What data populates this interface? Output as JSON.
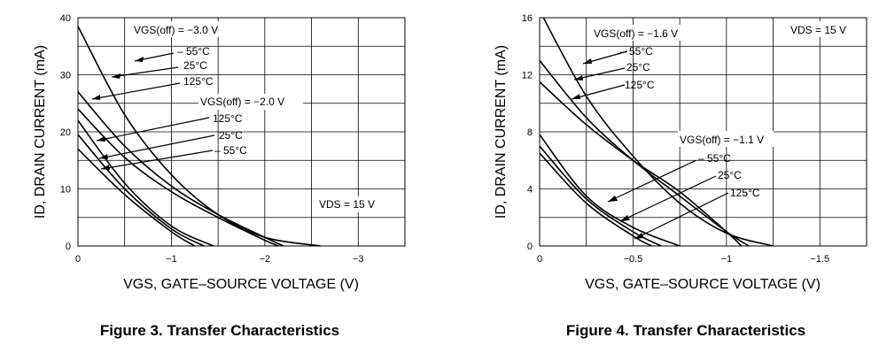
{
  "chart_data": [
    {
      "type": "line",
      "title": "Figure 3. Transfer Characteristics",
      "xlabel": "VGS, GATE–SOURCE VOLTAGE (V)",
      "ylabel": "ID, DRAIN CURRENT (mA)",
      "xlim": [
        0,
        -3.5
      ],
      "ylim": [
        0,
        40
      ],
      "x_ticks": [
        0,
        -1,
        -2,
        -3
      ],
      "x_tick_labels": [
        "0",
        "−1",
        "−2",
        "−3"
      ],
      "y_ticks": [
        0,
        10,
        20,
        30,
        40
      ],
      "y_tick_labels": [
        "0",
        "10",
        "20",
        "30",
        "40"
      ],
      "grid": true,
      "annotations": [
        "VGS(off) = −3.0 V",
        "– 55°C",
        "25°C",
        "125°C",
        "VGS(off) = −2.0 V",
        "125°C",
        "25°C",
        "– 55°C",
        "VDS = 15 V"
      ],
      "series": [
        {
          "values_x": [
            0,
            -0.5,
            -1.0,
            -1.5,
            -2.0,
            -2.6
          ],
          "values_y": [
            38.5,
            23,
            12.5,
            5.5,
            1.5,
            0
          ]
        },
        {
          "values_x": [
            0,
            -0.5,
            -1.0,
            -1.5,
            -2.0,
            -2.2
          ],
          "values_y": [
            27,
            17.5,
            10.5,
            5.5,
            1.5,
            0
          ]
        },
        {
          "values_x": [
            0,
            -0.5,
            -1.0,
            -1.5,
            -2.0,
            -2.15
          ],
          "values_y": [
            24,
            15.5,
            9.5,
            5,
            1,
            0
          ]
        },
        {
          "values_x": [
            0,
            -0.5,
            -1.0,
            -1.45
          ],
          "values_y": [
            22,
            11,
            3.5,
            0
          ]
        },
        {
          "values_x": [
            0,
            -0.5,
            -1.0,
            -1.35
          ],
          "values_y": [
            19.5,
            10,
            3,
            0
          ]
        },
        {
          "values_x": [
            0,
            -0.5,
            -1.0,
            -1.25
          ],
          "values_y": [
            17,
            9,
            2.5,
            0
          ]
        }
      ]
    },
    {
      "type": "line",
      "title": "Figure 4. Transfer Characteristics",
      "xlabel": "VGS, GATE–SOURCE VOLTAGE (V)",
      "ylabel": "ID, DRAIN CURRENT (mA)",
      "xlim": [
        0,
        -1.75
      ],
      "ylim": [
        0,
        16
      ],
      "x_ticks": [
        0,
        -0.5,
        -1,
        -1.5
      ],
      "x_tick_labels": [
        "0",
        "−0.5",
        "−1",
        "−1.5"
      ],
      "y_ticks": [
        0,
        4,
        8,
        12,
        16
      ],
      "y_tick_labels": [
        "0",
        "4",
        "8",
        "12",
        "16"
      ],
      "grid": true,
      "annotations": [
        "VGS(off) = −1.6 V",
        "– 55°C",
        "25°C",
        "125°C",
        "VDS = 15 V",
        "VGS(off) = −1.1 V",
        "– 55°C",
        "25°C",
        "125°C"
      ],
      "series": [
        {
          "values_x": [
            0,
            -0.25,
            -0.5,
            -0.75,
            -1.0,
            -1.25
          ],
          "values_y": [
            16.5,
            10.5,
            6.3,
            3,
            0.9,
            0
          ]
        },
        {
          "values_x": [
            0,
            -0.25,
            -0.5,
            -0.75,
            -1.0,
            -1.12
          ],
          "values_y": [
            13,
            9,
            6,
            3.5,
            1,
            0
          ]
        },
        {
          "values_x": [
            0,
            -0.25,
            -0.5,
            -0.75,
            -1.0,
            -1.08
          ],
          "values_y": [
            11.5,
            8.5,
            6,
            3.8,
            1,
            0
          ]
        },
        {
          "values_x": [
            0,
            -0.25,
            -0.5,
            -0.75
          ],
          "values_y": [
            7.8,
            3.5,
            1.3,
            0
          ]
        },
        {
          "values_x": [
            0,
            -0.25,
            -0.5,
            -0.65
          ],
          "values_y": [
            7,
            3.3,
            1,
            0
          ]
        },
        {
          "values_x": [
            0,
            -0.25,
            -0.5,
            -0.6
          ],
          "values_y": [
            6.5,
            3,
            0.7,
            0
          ]
        }
      ]
    }
  ]
}
